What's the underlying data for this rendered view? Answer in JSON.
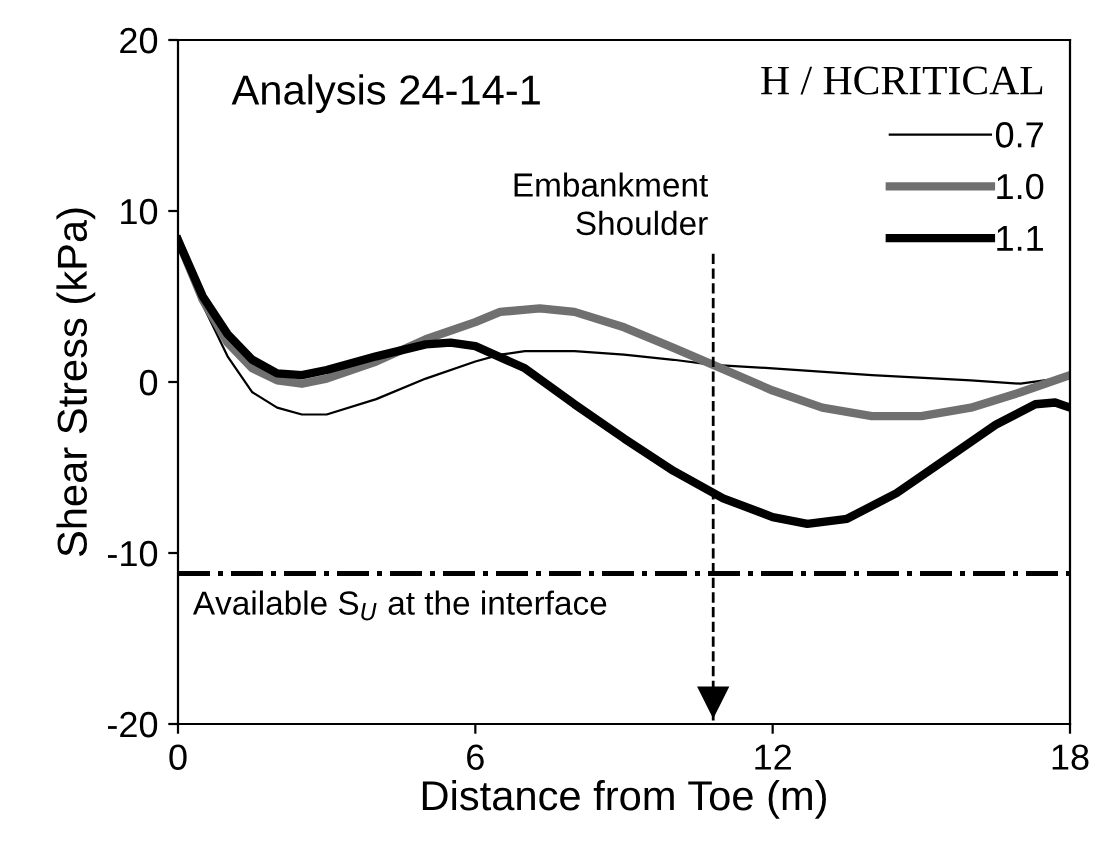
{
  "chart_data": {
    "type": "line",
    "xlabel": "Distance from Toe (m)",
    "ylabel": "Shear Stress (kPa)",
    "legend_title": "H / HCRITICAL",
    "annotations": [
      "Analysis 24-14-1"
    ],
    "xlim": [
      0,
      18
    ],
    "ylim": [
      -20,
      20
    ],
    "xticks": [
      0,
      6,
      12,
      18
    ],
    "yticks": [
      -20,
      -10,
      0,
      10,
      20
    ],
    "grid": false,
    "legend": "top right",
    "marker": "none",
    "line_style": "solid",
    "series": [
      {
        "name": "0.7",
        "color": "#000000",
        "x": [
          0,
          0.5,
          1,
          1.5,
          2,
          2.5,
          3,
          4,
          5,
          6,
          6.5,
          7,
          8,
          9,
          10,
          10.8,
          12,
          14,
          16,
          17,
          18
        ],
        "values": [
          8.3,
          4.5,
          1.5,
          -0.6,
          -1.5,
          -1.9,
          -1.9,
          -1.0,
          0.2,
          1.2,
          1.6,
          1.8,
          1.8,
          1.6,
          1.3,
          1.0,
          0.8,
          0.4,
          0.1,
          -0.1,
          0.3
        ]
      },
      {
        "name": "1.0",
        "color": "#707070",
        "x": [
          0,
          0.5,
          1,
          1.5,
          2,
          2.5,
          3,
          4,
          5,
          6,
          6.5,
          7.3,
          8,
          9,
          10,
          10.8,
          12,
          13,
          14,
          15,
          16,
          17,
          18
        ],
        "values": [
          8.3,
          4.8,
          2.3,
          0.8,
          0.1,
          -0.1,
          0.2,
          1.2,
          2.5,
          3.5,
          4.1,
          4.3,
          4.1,
          3.2,
          2.0,
          1.0,
          -0.5,
          -1.5,
          -2.0,
          -2.0,
          -1.5,
          -0.6,
          0.4
        ]
      },
      {
        "name": "1.1",
        "color": "#000000",
        "x": [
          0,
          0.5,
          1,
          1.5,
          2,
          2.5,
          3,
          4,
          5,
          5.5,
          6,
          7,
          8,
          9,
          10,
          11,
          12,
          12.7,
          13.5,
          14.5,
          15.5,
          16.5,
          17.3,
          17.7,
          18
        ],
        "values": [
          8.3,
          5.0,
          2.8,
          1.3,
          0.5,
          0.4,
          0.7,
          1.5,
          2.2,
          2.3,
          2.1,
          0.8,
          -1.3,
          -3.3,
          -5.2,
          -6.8,
          -7.9,
          -8.3,
          -8.0,
          -6.5,
          -4.5,
          -2.5,
          -1.3,
          -1.2,
          -1.5
        ]
      }
    ],
    "ref_lines": [
      {
        "axis": "y",
        "value": -11.2,
        "label": "Available S$_{U}$ at the interface",
        "color": "#000000",
        "line_style": "dashdot"
      },
      {
        "axis": "x",
        "value": 10.8,
        "label": "Embankment\nShoulder",
        "color": "#000000",
        "line_style": "dashed"
      }
    ]
  }
}
